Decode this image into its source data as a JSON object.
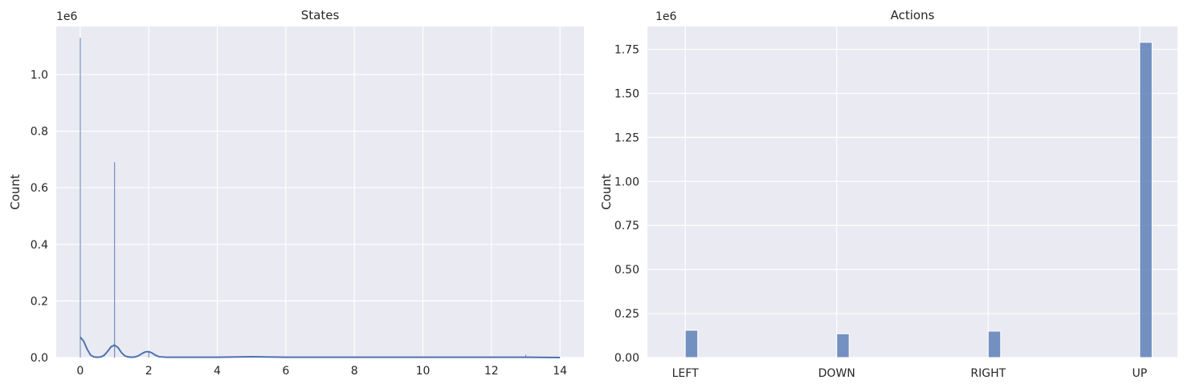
{
  "chart_data": [
    {
      "type": "histogram",
      "title": "States",
      "xlabel": "",
      "ylabel": "Count",
      "offset_text": "1e6",
      "xlim": [
        -0.7,
        14.7
      ],
      "ylim": [
        0,
        1.17
      ],
      "xticks": [
        0,
        2,
        4,
        6,
        8,
        10,
        12,
        14
      ],
      "yticks": [
        0.0,
        0.2,
        0.4,
        0.6,
        0.8,
        1.0
      ],
      "xtick_labels": [
        "0",
        "2",
        "4",
        "6",
        "8",
        "10",
        "12",
        "14"
      ],
      "ytick_labels": [
        "0.0",
        "0.2",
        "0.4",
        "0.6",
        "0.8",
        "1.0"
      ],
      "grid": true,
      "bars": [
        {
          "x": 0,
          "value": 1.13
        },
        {
          "x": 1,
          "value": 0.69
        },
        {
          "x": 2,
          "value": 0.02
        },
        {
          "x": 5,
          "value": 0.004
        },
        {
          "x": 9,
          "value": 0.002
        },
        {
          "x": 10,
          "value": 0.003
        },
        {
          "x": 13,
          "value": 0.01
        }
      ],
      "kde": {
        "x": [
          0,
          0.1,
          0.2,
          0.3,
          0.4,
          0.5,
          0.6,
          0.7,
          0.8,
          0.9,
          1.0,
          1.1,
          1.2,
          1.3,
          1.4,
          1.5,
          1.6,
          1.7,
          1.8,
          1.9,
          2.0,
          2.1,
          2.2,
          2.3,
          2.5,
          3,
          4,
          5,
          6,
          8,
          10,
          12,
          13,
          14
        ],
        "y": [
          0.072,
          0.058,
          0.03,
          0.009,
          0.002,
          0.001,
          0.002,
          0.008,
          0.022,
          0.038,
          0.044,
          0.036,
          0.018,
          0.006,
          0.002,
          0.001,
          0.002,
          0.006,
          0.014,
          0.02,
          0.021,
          0.016,
          0.008,
          0.003,
          0.001,
          0.001,
          0.001,
          0.003,
          0.001,
          0.001,
          0.001,
          0.001,
          0.001,
          0.0
        ]
      },
      "colors": {
        "bar": "#4c72b0",
        "kde": "#4c72b0",
        "background": "#eaeaf2",
        "grid": "#ffffff"
      }
    },
    {
      "type": "bar",
      "title": "Actions",
      "xlabel": "",
      "ylabel": "Count",
      "offset_text": "1e6",
      "categories": [
        "LEFT",
        "DOWN",
        "RIGHT",
        "UP"
      ],
      "values": [
        0.155,
        0.135,
        0.15,
        1.79
      ],
      "ylim": [
        0,
        1.88
      ],
      "yticks": [
        0.0,
        0.25,
        0.5,
        0.75,
        1.0,
        1.25,
        1.5,
        1.75
      ],
      "ytick_labels": [
        "0.00",
        "0.25",
        "0.50",
        "0.75",
        "1.00",
        "1.25",
        "1.50",
        "1.75"
      ],
      "grid": true,
      "colors": {
        "bar": "#4c72b0",
        "background": "#eaeaf2",
        "grid": "#ffffff"
      }
    }
  ]
}
